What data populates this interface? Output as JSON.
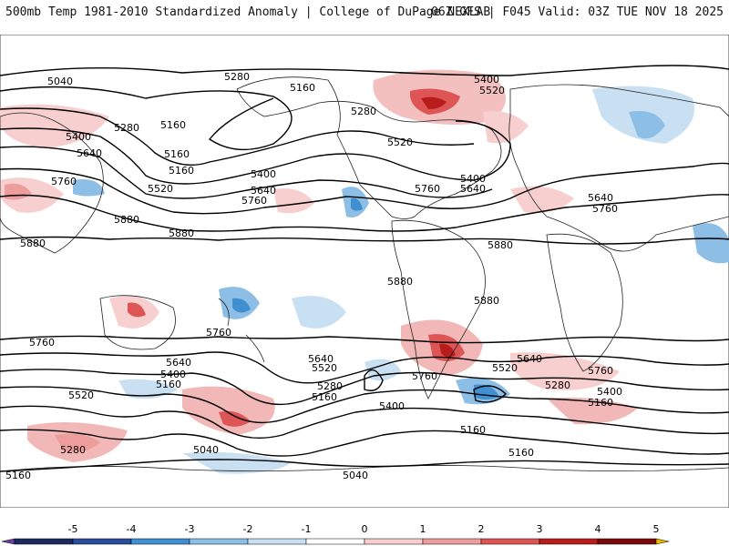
{
  "header": {
    "left": "500mb Temp 1981-2010 Standardized Anomaly | College of DuPage NEXLAB",
    "right": "06Z GFS | F045 Valid: 03Z TUE NOV 18 2025"
  },
  "map": {
    "contour_labels": {
      "c5040a": "5040",
      "c5280a": "5280",
      "c5160a": "5160",
      "c5400a": "5400",
      "c5520a": "5520",
      "c5280b": "5280",
      "c5160b": "5160",
      "c5400b": "5400",
      "c5640a": "5640",
      "c5760a": "5760",
      "c5520b": "5520",
      "c5160c": "5160",
      "c5880a": "5880",
      "c5880b": "5880",
      "c5880c": "5880",
      "c5400c": "5400",
      "c5640b": "5640",
      "c5760b": "5760",
      "c5520c": "5520",
      "c5280c": "5280",
      "c5760c": "5760",
      "c5400d": "5400",
      "c5640c": "5640",
      "c5760d": "5760",
      "c5640d": "5640",
      "c5880d": "5880",
      "c5880e": "5880",
      "c5880f": "5880",
      "c5760e": "5760",
      "c5760f": "5760",
      "c5640e": "5640",
      "c5400e": "5400",
      "c5160d": "5160",
      "c5520d": "5520",
      "c5280d": "5280",
      "c5040b": "5040",
      "c5160e": "5160",
      "c5640f": "5640",
      "c5520e": "5520",
      "c5280e": "5280",
      "c5160f": "5160",
      "c5400f": "5400",
      "c5760g": "5760",
      "c5520f": "5520",
      "c5640g": "5640",
      "c5760h": "5760",
      "c5280f": "5280",
      "c5400g": "5400",
      "c5160g": "5160",
      "c5160h": "5160",
      "c5160i": "5160",
      "c5040c": "5040",
      "c5160j": "5160"
    }
  },
  "legend": {
    "ticks": [
      "-5",
      "-4",
      "-3",
      "-2",
      "-1",
      "0",
      "1",
      "2",
      "3",
      "4",
      "5"
    ],
    "colors": [
      "#1a2a5e",
      "#2b4c9a",
      "#3f8fd1",
      "#8dbfe6",
      "#c9dff2",
      "#ffffff",
      "#f7cfcf",
      "#ee9d9d",
      "#dd5555",
      "#b81d1d",
      "#7a0a0a"
    ],
    "low_cap": "#6a3fa0",
    "high_cap": "#f0b800"
  }
}
